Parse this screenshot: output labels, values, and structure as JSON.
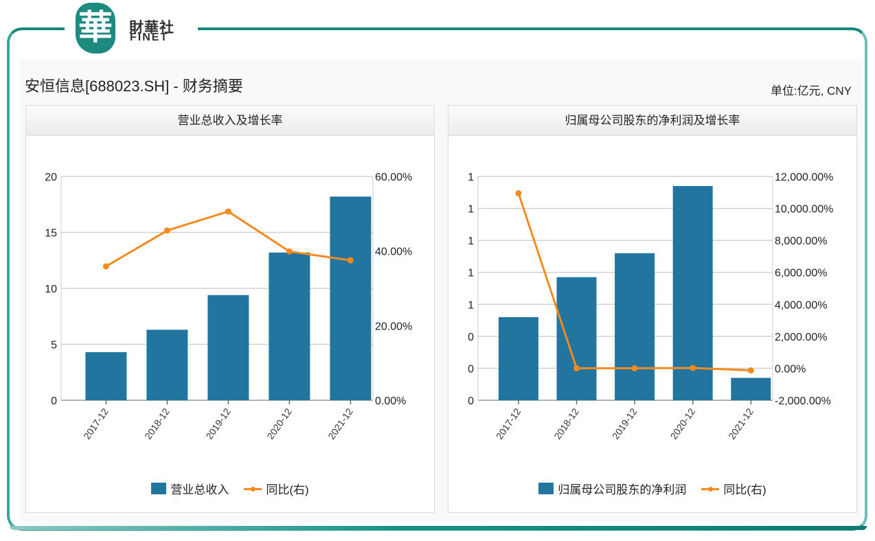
{
  "brand": {
    "logo_glyph": "華",
    "name_cn": "財華社",
    "name_en": "FINET"
  },
  "header": {
    "title": "安恒信息[688023.SH] - 财务摘要",
    "unit": "单位:亿元, CNY"
  },
  "colors": {
    "frame": "#16877f",
    "bar": "#21759f",
    "line": "#f58a1f",
    "grid": "#d0d0d0"
  },
  "panels": [
    {
      "title": "营业总收入及增长率",
      "legend_bar": "营业总收入",
      "legend_line": "同比(右)"
    },
    {
      "title": "归属母公司股东的净利润及增长率",
      "legend_bar": "归属母公司股东的净利润",
      "legend_line": "同比(右)"
    }
  ],
  "chart_data": [
    {
      "type": "bar+line",
      "title": "营业总收入及增长率",
      "categories": [
        "2017-12",
        "2018-12",
        "2019-12",
        "2020-12",
        "2021-12"
      ],
      "series": [
        {
          "name": "营业总收入",
          "type": "bar",
          "axis": "left",
          "values": [
            4.3,
            6.3,
            9.4,
            13.2,
            18.2
          ]
        },
        {
          "name": "同比(右)",
          "type": "line",
          "axis": "right",
          "values": [
            35.9,
            45.5,
            50.6,
            39.9,
            37.5
          ]
        }
      ],
      "left_axis": {
        "min": 0,
        "max": 20,
        "ticks": [
          "0",
          "5",
          "10",
          "15",
          "20"
        ]
      },
      "right_axis": {
        "min": 0,
        "max": 60,
        "ticks": [
          "0.00%",
          "20.00%",
          "40.00%",
          "60.00%"
        ]
      },
      "grid": true,
      "legend_position": "bottom"
    },
    {
      "type": "bar+line",
      "title": "归属母公司股东的净利润及增长率",
      "categories": [
        "2017-12",
        "2018-12",
        "2019-12",
        "2020-12",
        "2021-12"
      ],
      "series": [
        {
          "name": "归属母公司股东的净利润",
          "type": "bar",
          "axis": "left",
          "values": [
            0.52,
            0.77,
            0.92,
            1.34,
            0.14
          ]
        },
        {
          "name": "同比(右)",
          "type": "line",
          "axis": "right",
          "values": [
            10950,
            0,
            0,
            20,
            -130
          ]
        }
      ],
      "left_axis": {
        "min": 0,
        "max": 1.4,
        "ticks": [
          "0",
          "0",
          "0",
          "1",
          "1",
          "1",
          "1",
          "1"
        ]
      },
      "right_axis": {
        "min": -2000,
        "max": 12000,
        "ticks": [
          "-2,000.00%",
          "0.00%",
          "2,000.00%",
          "4,000.00%",
          "6,000.00%",
          "8,000.00%",
          "10,000.00%",
          "12,000.00%"
        ]
      },
      "grid": true,
      "legend_position": "bottom"
    }
  ]
}
